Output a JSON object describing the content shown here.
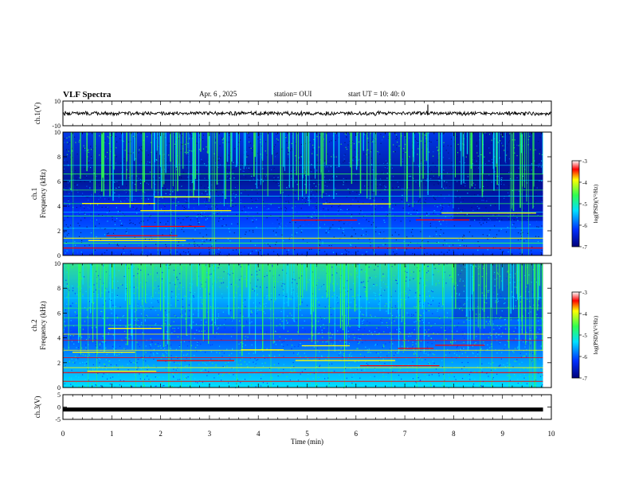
{
  "header": {
    "title": "VLF Spectra",
    "date": "Apr. 6 , 2025",
    "station": "station= OUI",
    "start_ut": "start UT = 10: 40: 0"
  },
  "chart_data": [
    {
      "type": "line",
      "panel": "ch1-waveform",
      "ylabel": "ch.1(V)",
      "ylim": [
        -10,
        10
      ],
      "ytick_labels": [
        "10",
        "-10"
      ],
      "x": [
        0,
        10
      ],
      "description_level": "noisy waveform near 0 V"
    },
    {
      "type": "heatmap",
      "panel": "ch1-spectrogram",
      "ylabel": "ch.1\nFrequency (kHz)",
      "ylabel_line1": "ch.1",
      "ylabel_line2": "Frequency (kHz)",
      "ylim": [
        0,
        10
      ],
      "ytick_labels": [
        "0",
        "2",
        "4",
        "6",
        "8",
        "10"
      ],
      "xlim": [
        0,
        10
      ],
      "data_end_min": 9.83,
      "colorbar": {
        "label": "log(PSD)(V²/Hz)",
        "range": [
          -7,
          -3
        ],
        "tick_labels": [
          "-3",
          "-4",
          "-5",
          "-6",
          "-7"
        ]
      }
    },
    {
      "type": "heatmap",
      "panel": "ch2-spectrogram",
      "ylabel_line1": "ch.2",
      "ylabel_line2": "Frequency (kHz)",
      "ylim": [
        0,
        10
      ],
      "ytick_labels": [
        "0",
        "2",
        "4",
        "6",
        "8",
        "10"
      ],
      "xlim": [
        0,
        10
      ],
      "data_end_min": 9.83,
      "colorbar": {
        "label": "log(PSD)(V²/Hz)",
        "range": [
          -7,
          -3
        ],
        "tick_labels": [
          "-3",
          "-4",
          "-5",
          "-6",
          "-7"
        ]
      }
    },
    {
      "type": "line",
      "panel": "ch3-waveform",
      "ylabel": "ch.3(V)",
      "ylim": [
        -5,
        5
      ],
      "ytick_labels": [
        "5",
        "0",
        "-5"
      ],
      "x": [
        0,
        9.83
      ],
      "y": [
        -1,
        -1
      ],
      "xlabel": "Time (min)",
      "xtick_labels": [
        "0",
        "1",
        "2",
        "3",
        "4",
        "5",
        "6",
        "7",
        "8",
        "9",
        "10"
      ]
    }
  ],
  "colors": {
    "deep": "#00007a",
    "blue": "#0030ff",
    "cyan": "#00e0ff",
    "green": "#30ff50",
    "yellow": "#ffff00",
    "red": "#ff0000",
    "line": "#000000"
  }
}
